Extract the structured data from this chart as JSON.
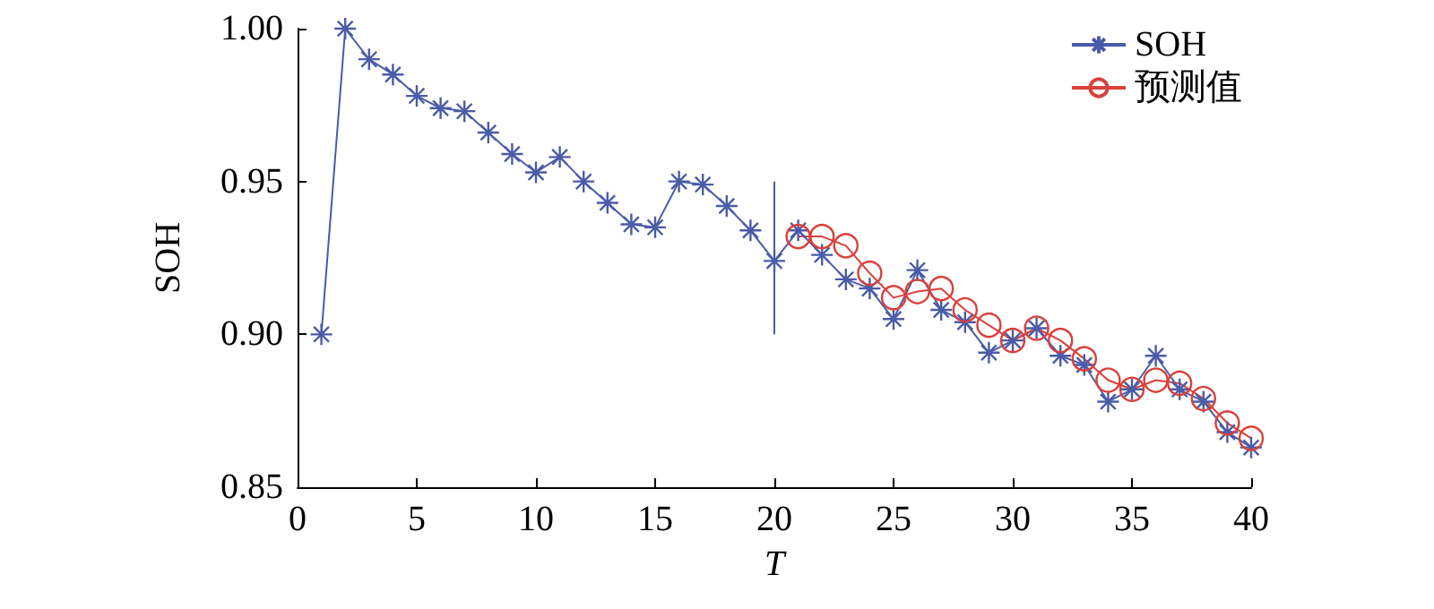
{
  "chart_data": {
    "type": "line",
    "xlabel": "T",
    "ylabel": "SOH",
    "xlim": [
      0,
      40
    ],
    "xticks": [
      0,
      5,
      10,
      15,
      20,
      25,
      30,
      35,
      40
    ],
    "ylim": [
      0.85,
      1.0
    ],
    "yticks": [
      {
        "value": 0.85,
        "label": "0.85"
      },
      {
        "value": 0.9,
        "label": "0.90"
      },
      {
        "value": 0.95,
        "label": "0.95"
      },
      {
        "value": 1.0,
        "label": "1.00"
      }
    ],
    "grid": false,
    "legend": "top right",
    "line_style": "solid",
    "series": [
      {
        "name": "SOH",
        "color": "#4a5ba8",
        "marker": "cross",
        "x": [
          1,
          2,
          3,
          4,
          5,
          6,
          7,
          8,
          9,
          10,
          11,
          12,
          13,
          14,
          15,
          16,
          17,
          18,
          19,
          20,
          21,
          22,
          23,
          24,
          25,
          26,
          27,
          28,
          29,
          30,
          31,
          32,
          33,
          34,
          35,
          36,
          37,
          38,
          39,
          40
        ],
        "values": [
          0.9,
          1.0,
          0.99,
          0.985,
          0.978,
          0.974,
          0.973,
          0.966,
          0.959,
          0.953,
          0.958,
          0.95,
          0.943,
          0.936,
          0.935,
          0.95,
          0.949,
          0.942,
          0.934,
          0.924,
          0.934,
          0.926,
          0.918,
          0.915,
          0.905,
          0.921,
          0.908,
          0.904,
          0.894,
          0.898,
          0.902,
          0.893,
          0.89,
          0.878,
          0.882,
          0.893,
          0.882,
          0.878,
          0.868,
          0.863
        ]
      },
      {
        "name": "预测值",
        "color": "#d9403a",
        "marker": "circle",
        "x": [
          21,
          22,
          23,
          24,
          25,
          26,
          27,
          28,
          29,
          30,
          31,
          32,
          33,
          34,
          35,
          36,
          37,
          38,
          39,
          40
        ],
        "values": [
          0.932,
          0.932,
          0.929,
          0.92,
          0.912,
          0.914,
          0.915,
          0.908,
          0.903,
          0.898,
          0.902,
          0.898,
          0.892,
          0.885,
          0.882,
          0.885,
          0.884,
          0.879,
          0.871,
          0.866
        ]
      },
      {
        "color": "#4a5ba8",
        "marker": "none",
        "x": [
          20,
          20
        ],
        "values": [
          0.9,
          0.95
        ]
      }
    ]
  }
}
